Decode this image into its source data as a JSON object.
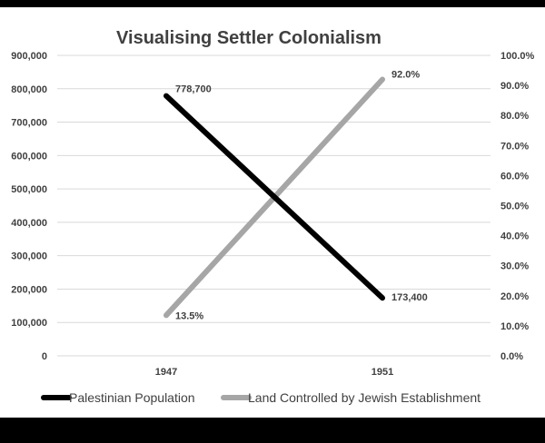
{
  "chart_data": {
    "type": "line",
    "title": "Visualising Settler Colonialism",
    "categories": [
      "1947",
      "1951"
    ],
    "y_left": {
      "range": [
        0,
        900000
      ],
      "ticks": [
        "0",
        "100,000",
        "200,000",
        "300,000",
        "400,000",
        "500,000",
        "600,000",
        "700,000",
        "800,000",
        "900,000"
      ]
    },
    "y_right": {
      "range": [
        0,
        100
      ],
      "ticks": [
        "0.0%",
        "10.0%",
        "20.0%",
        "30.0%",
        "40.0%",
        "50.0%",
        "60.0%",
        "70.0%",
        "80.0%",
        "90.0%",
        "100.0%"
      ]
    },
    "series": [
      {
        "name": "Palestinian Population",
        "axis": "left",
        "values": [
          778700,
          173400
        ],
        "labels": [
          "778,700",
          "173,400"
        ],
        "color": "#000000"
      },
      {
        "name": "Land Controlled by Jewish Establishment",
        "axis": "right",
        "values": [
          13.5,
          92.0
        ],
        "labels": [
          "13.5%",
          "92.0%"
        ],
        "color": "#a6a6a6"
      }
    ],
    "grid": true,
    "legend_position": "bottom"
  }
}
